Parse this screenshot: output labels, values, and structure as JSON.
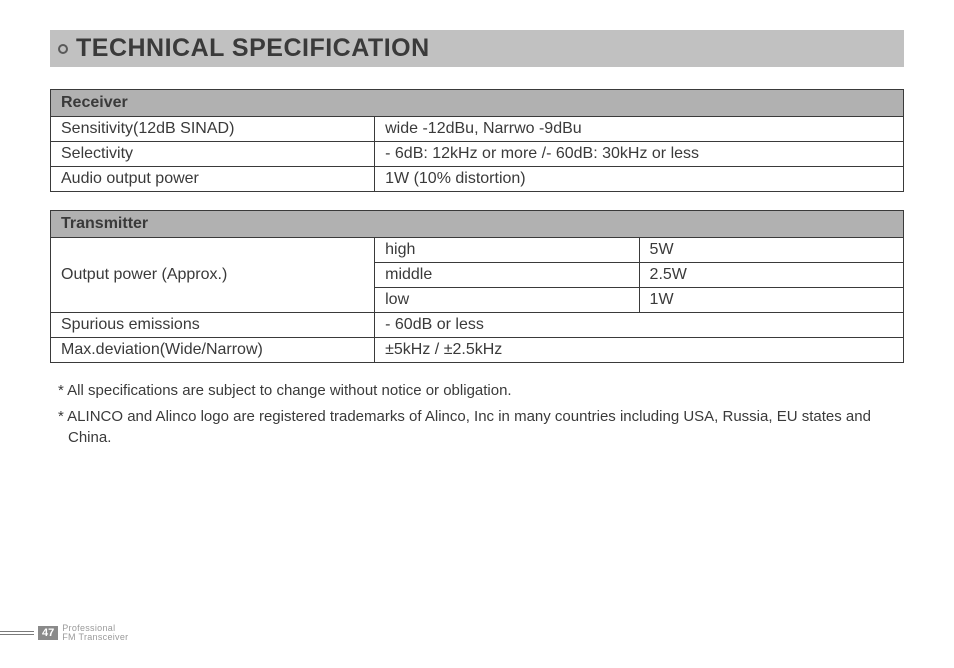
{
  "title": "TECHNICAL SPECIFICATION",
  "receiver": {
    "header": "Receiver",
    "rows": [
      {
        "label": "Sensitivity(12dB SINAD)",
        "value": "wide -12dBu,  Narrwo -9dBu"
      },
      {
        "label": "Selectivity",
        "value": "- 6dB: 12kHz or more /- 60dB: 30kHz or less"
      },
      {
        "label": "Audio output power",
        "value": "1W (10% distortion)"
      }
    ]
  },
  "transmitter": {
    "header": "Transmitter",
    "output_label": "Output power (Approx.)",
    "output_rows": [
      {
        "level": "high",
        "value": "5W"
      },
      {
        "level": "middle",
        "value": "2.5W"
      },
      {
        "level": "low",
        "value": "1W"
      }
    ],
    "rows": [
      {
        "label": "Spurious emissions",
        "value": "- 60dB or less"
      },
      {
        "label": "Max.deviation(Wide/Narrow)",
        "value": "±5kHz / ±2.5kHz"
      }
    ]
  },
  "notes": [
    "* All specifications are subject to change without notice or obligation.",
    "* ALINCO and Alinco logo are registered trademarks of Alinco, Inc in many countries including USA, Russia, EU states and China."
  ],
  "footer": {
    "page": "47",
    "line1": "Professional",
    "line2": "FM Transceiver"
  },
  "style": {
    "title_bg": "#c1c1c1",
    "table_header_bg": "#b1b1b1",
    "border_color": "#3a3a3a",
    "text_color": "#3a3a3a",
    "title_fontsize": 25,
    "cell_fontsize": 16,
    "note_fontsize": 15
  }
}
